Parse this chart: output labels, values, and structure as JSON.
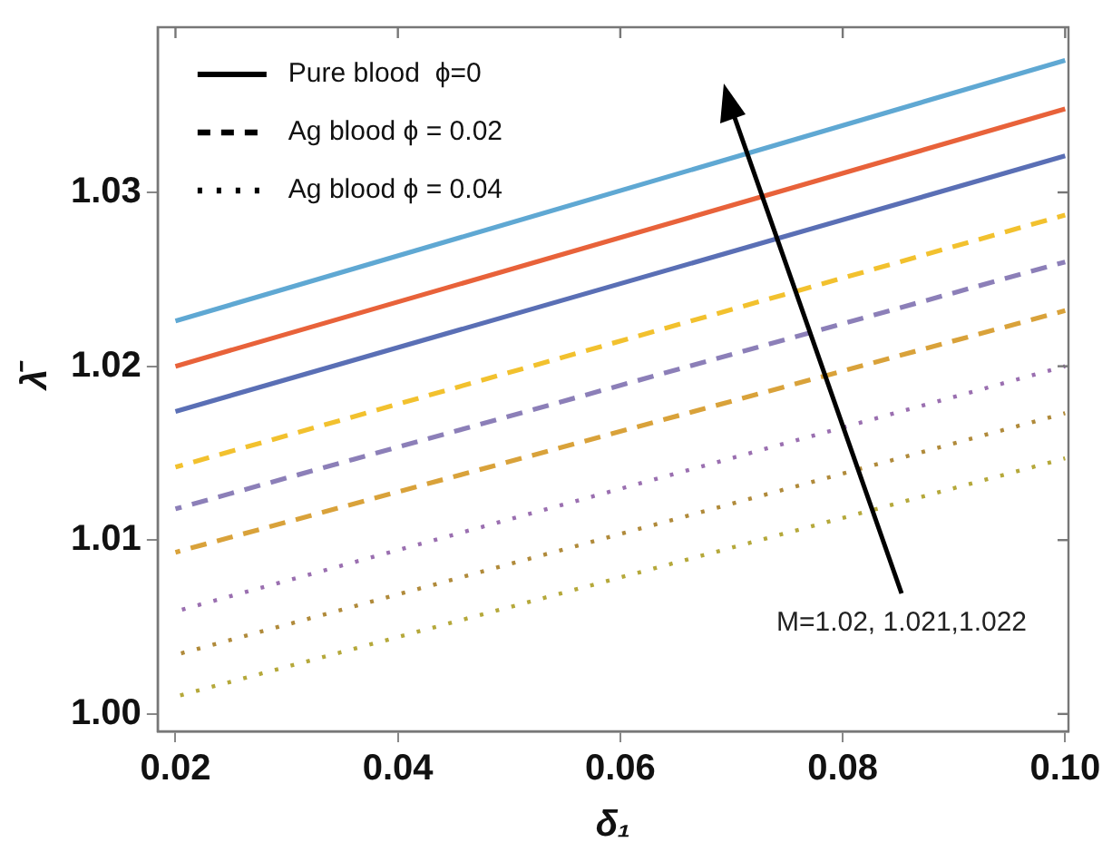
{
  "chart_data": {
    "type": "line",
    "xlabel": "δ₁",
    "ylabel": "λ̄",
    "x": [
      0.02,
      0.1
    ],
    "xlim": [
      0.0184,
      0.1003
    ],
    "xticks": [
      {
        "value": 0.02,
        "label": "0.02"
      },
      {
        "value": 0.04,
        "label": "0.04"
      },
      {
        "value": 0.06,
        "label": "0.06"
      },
      {
        "value": 0.08,
        "label": "0.08"
      },
      {
        "value": 0.1,
        "label": "0.10"
      }
    ],
    "ylim": [
      0.999,
      1.0395
    ],
    "yticks": [
      {
        "value": 1.0,
        "label": "1.00"
      },
      {
        "value": 1.01,
        "label": "1.01"
      },
      {
        "value": 1.02,
        "label": "1.02"
      },
      {
        "value": 1.03,
        "label": "1.03"
      }
    ],
    "grid": false,
    "marker": "none",
    "series": [
      {
        "color": "#5fa8d3",
        "line_style": "solid",
        "values": [
          1.0226,
          1.0376
        ]
      },
      {
        "color": "#e8623a",
        "line_style": "solid",
        "values": [
          1.02,
          1.0348
        ]
      },
      {
        "color": "#5a6fb5",
        "line_style": "solid",
        "values": [
          1.0174,
          1.0321
        ]
      },
      {
        "color": "#f2c12e",
        "line_style": "dashed",
        "values": [
          1.0142,
          1.0287
        ]
      },
      {
        "color": "#8c7fb8",
        "line_style": "dashed",
        "values": [
          1.0118,
          1.026
        ]
      },
      {
        "color": "#d9a23a",
        "line_style": "dashed",
        "values": [
          1.0093,
          1.0232
        ]
      },
      {
        "color": "#9a6fb0",
        "line_style": "dotted",
        "values": [
          1.0059,
          1.02
        ]
      },
      {
        "color": "#b08a3a",
        "line_style": "dotted",
        "values": [
          1.0034,
          1.0173
        ]
      },
      {
        "color": "#b5a83a",
        "line_style": "dotted",
        "values": [
          1.001,
          1.0147
        ]
      }
    ],
    "annotations": [
      "Pure blood  ϕ=0",
      "Ag blood ϕ = 0.02",
      "Ag blood ϕ = 0.04",
      "M=1.02, 1.021,1.022"
    ]
  }
}
